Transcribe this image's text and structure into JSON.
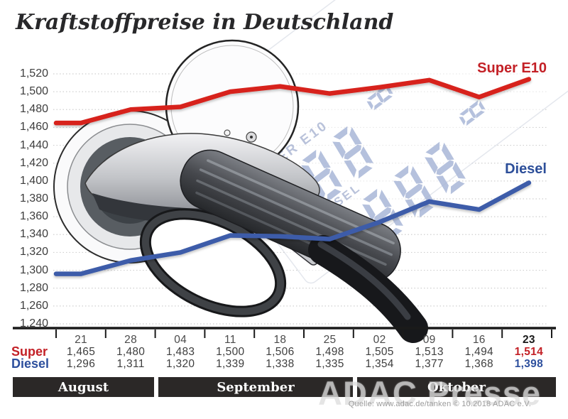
{
  "title": "Kraftstoffpreise in Deutschland",
  "legend": {
    "super": "Super E10",
    "diesel": "Diesel"
  },
  "watermark": "ADAC Presse",
  "source": "Quelle: www.adac.de/tanken   © 10.2018   ADAC e.V.",
  "pump_display": {
    "super_label": "SUPER E10",
    "super_digits": "888",
    "super_small_digit": "8",
    "diesel_label": "DIESEL",
    "diesel_digits": "888",
    "diesel_small_digit": "8"
  },
  "months": [
    "August",
    "September",
    "Oktober"
  ],
  "table": {
    "dates": [
      "21",
      "28",
      "04",
      "11",
      "18",
      "25",
      "02",
      "09",
      "16",
      "23"
    ],
    "rows": [
      {
        "label": "Super",
        "values": [
          "1,465",
          "1,480",
          "1,483",
          "1,500",
          "1,506",
          "1,498",
          "1,505",
          "1,513",
          "1,494",
          "1,514"
        ]
      },
      {
        "label": "Diesel",
        "values": [
          "1,296",
          "1,311",
          "1,320",
          "1,339",
          "1,338",
          "1,335",
          "1,354",
          "1,377",
          "1,368",
          "1,398"
        ]
      }
    ]
  },
  "chart_data": {
    "type": "line",
    "title": "Kraftstoffpreise in Deutschland",
    "x": [
      "21",
      "28",
      "04",
      "11",
      "18",
      "25",
      "02",
      "09",
      "16",
      "23"
    ],
    "x_months": [
      "August",
      "August",
      "September",
      "September",
      "September",
      "September",
      "Oktober",
      "Oktober",
      "Oktober",
      "Oktober"
    ],
    "series": [
      {
        "name": "Super E10",
        "color": "#d7231d",
        "values": [
          1.465,
          1.48,
          1.483,
          1.5,
          1.506,
          1.498,
          1.505,
          1.513,
          1.494,
          1.514
        ]
      },
      {
        "name": "Diesel",
        "color": "#3c5ba9",
        "values": [
          1.296,
          1.311,
          1.32,
          1.339,
          1.338,
          1.335,
          1.354,
          1.377,
          1.368,
          1.398
        ]
      }
    ],
    "ylim": [
      1.24,
      1.52
    ],
    "y_tick_step": 0.02,
    "y_tick_labels": [
      "1,520",
      "1,500",
      "1,480",
      "1,460",
      "1,440",
      "1,420",
      "1,400",
      "1,380",
      "1,360",
      "1,340",
      "1,320",
      "1,300",
      "1,280",
      "1,260",
      "1,240"
    ],
    "grid": "horizontal-dotted",
    "legend_position": "right-inline"
  }
}
